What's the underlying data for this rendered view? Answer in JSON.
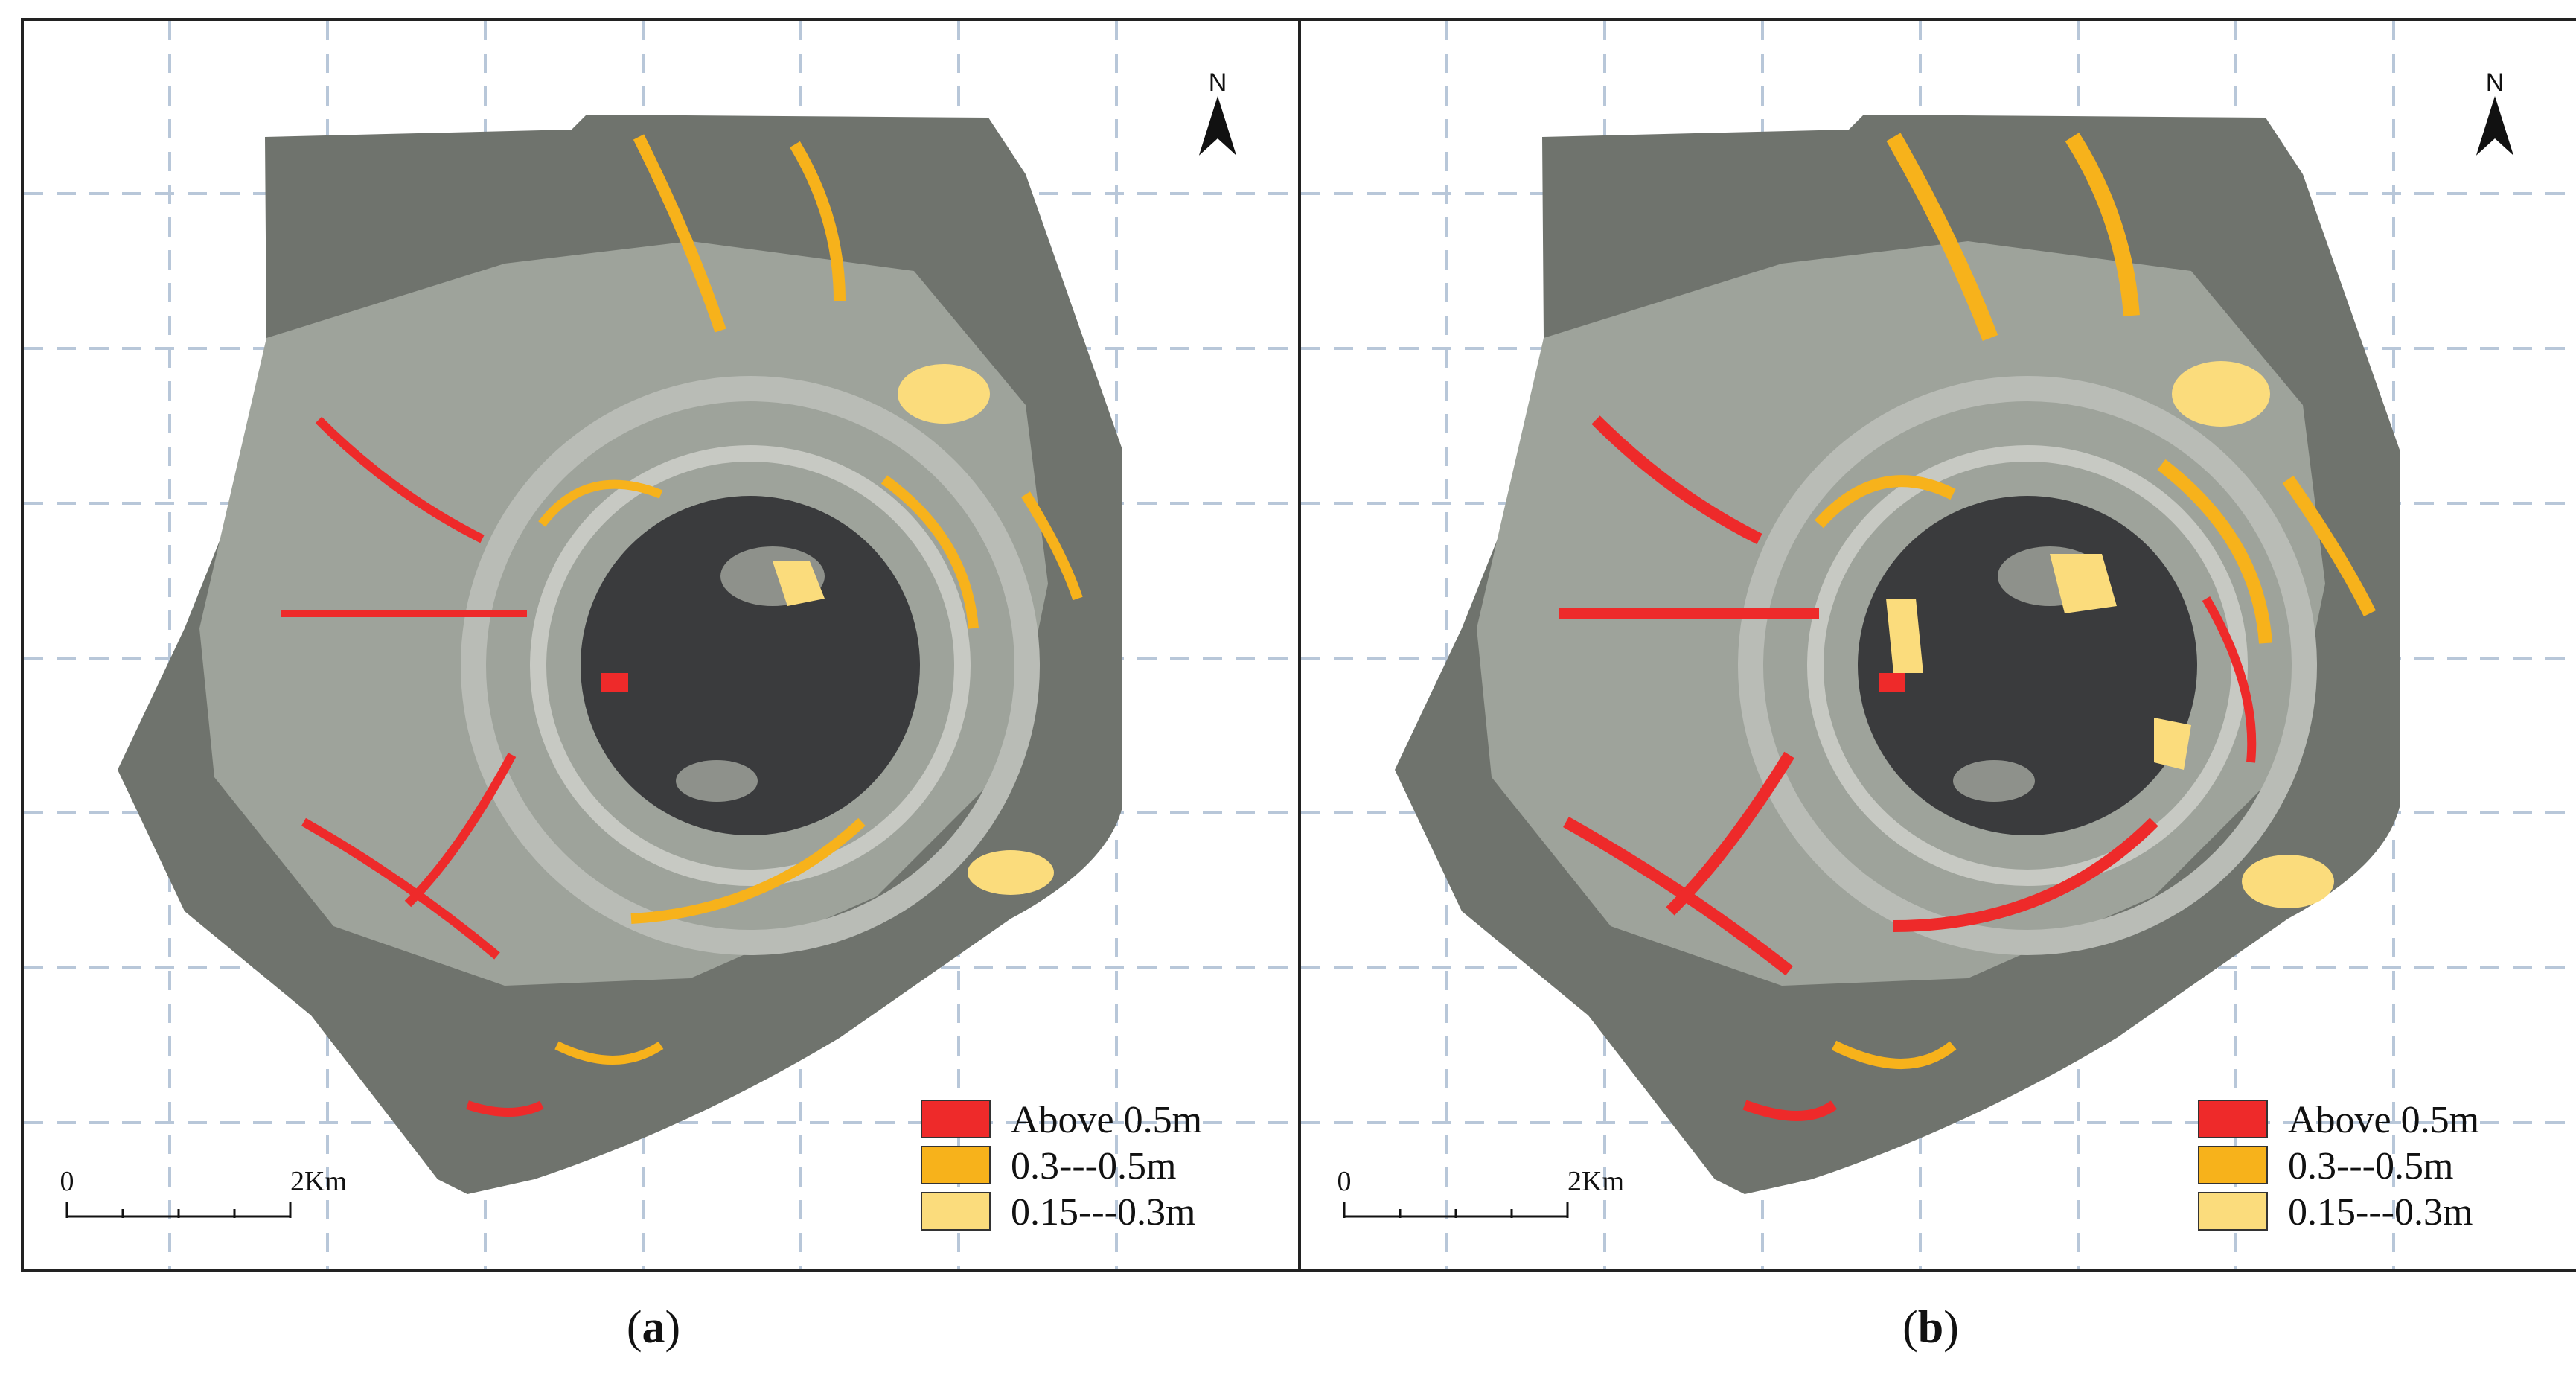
{
  "panels": [
    {
      "id": "a",
      "caption_letter": "a",
      "north_label": "N",
      "scale": {
        "start": "0",
        "end": "2Km"
      },
      "legend": [
        {
          "label": "Above 0.5m",
          "color": "#ee2a2a"
        },
        {
          "label": "0.3---0.5m",
          "color": "#f7b21b"
        },
        {
          "label": "0.15---0.3m",
          "color": "#fbdc7c"
        }
      ]
    },
    {
      "id": "b",
      "caption_letter": "b",
      "north_label": "N",
      "scale": {
        "start": "0",
        "end": "2Km"
      },
      "legend": [
        {
          "label": "Above 0.5m",
          "color": "#ee2a2a"
        },
        {
          "label": "0.3---0.5m",
          "color": "#f7b21b"
        },
        {
          "label": "0.15---0.3m",
          "color": "#fbdc7c"
        }
      ]
    }
  ],
  "colors": {
    "grid": "#b8c7d9",
    "frame": "#222222",
    "imagery": "#6f736d",
    "lake": "#3a3b3d",
    "ring": "#b9bcb6"
  }
}
